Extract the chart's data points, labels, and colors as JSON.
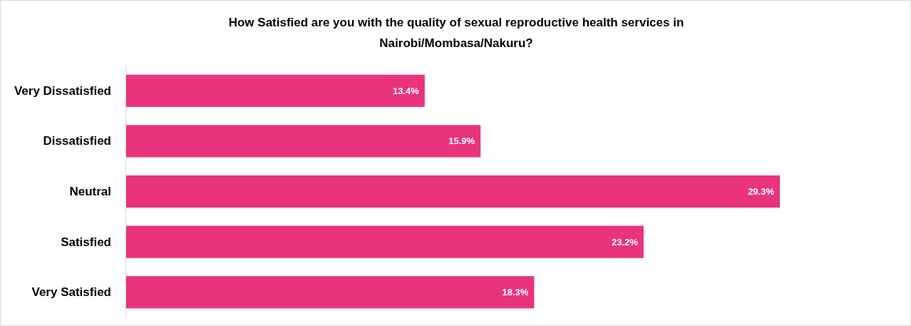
{
  "chart_data": {
    "type": "bar",
    "orientation": "horizontal",
    "title": "How Satisfied are you with the quality of sexual reproductive health services in Nairobi/Mombasa/Nakuru?",
    "categories": [
      "Very Dissatisfied",
      "Dissatisfied",
      "Neutral",
      "Satisfied",
      "Very Satisfied"
    ],
    "values": [
      13.4,
      15.9,
      29.3,
      23.2,
      18.3
    ],
    "value_labels": [
      "13.4%",
      "15.9%",
      "29.3%",
      "23.2%",
      "18.3%"
    ],
    "color": "#e9337c",
    "tick_labels": "y"
  }
}
